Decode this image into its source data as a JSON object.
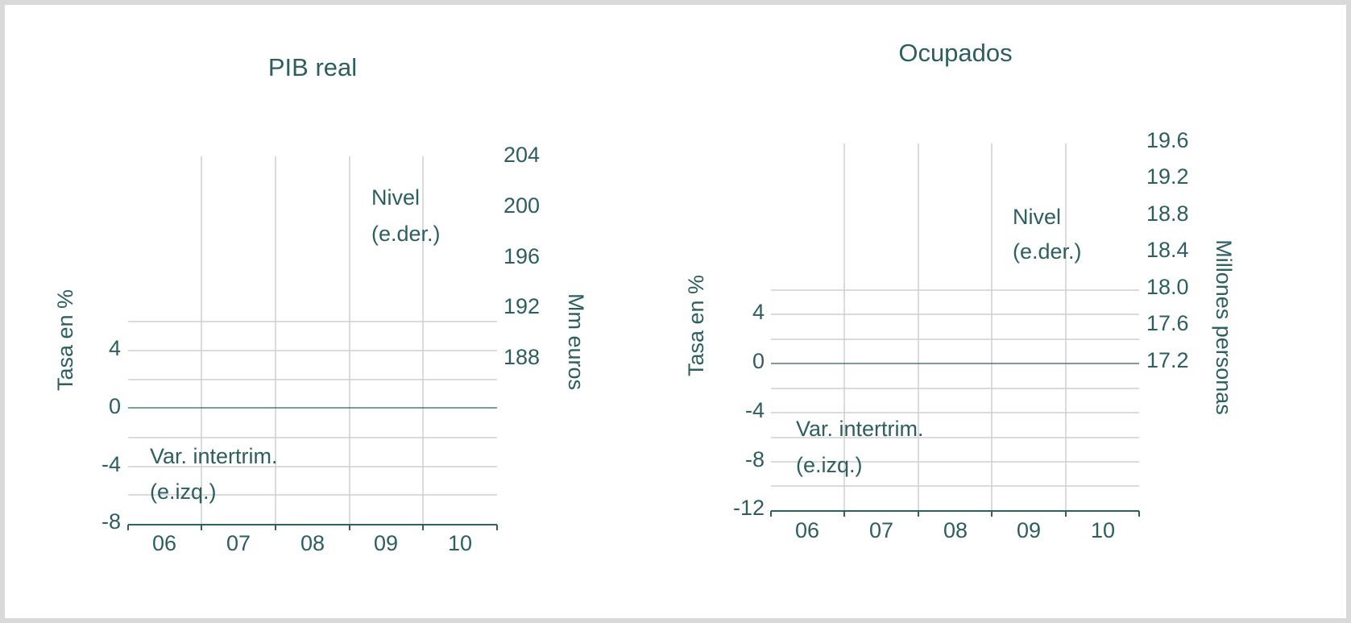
{
  "colors": {
    "text": "#2e5e5e",
    "grid": "#cfcfcf",
    "axis": "#2e6060",
    "background": "#ffffff",
    "border": "#d9d9d9"
  },
  "chart_data": [
    {
      "type": "line",
      "title": "PIB real",
      "categories": [
        "06",
        "07",
        "08",
        "09",
        "10"
      ],
      "left_axis": {
        "label": "Tasa en %",
        "ticks": [
          "4",
          "0",
          "-4",
          "-8"
        ],
        "range": [
          -8,
          6
        ]
      },
      "right_axis": {
        "label": "Mm euros",
        "ticks": [
          "204",
          "200",
          "196",
          "192",
          "188"
        ],
        "range": [
          186,
          204
        ]
      },
      "grid": true,
      "annotations": {
        "level": [
          "Nivel",
          "(e.der.)"
        ],
        "rate": [
          "Var. intertrim.",
          "(e.izq.)"
        ]
      },
      "series": []
    },
    {
      "type": "line",
      "title": "Ocupados",
      "categories": [
        "06",
        "07",
        "08",
        "09",
        "10"
      ],
      "left_axis": {
        "label": "Tasa en %",
        "ticks": [
          "4",
          "0",
          "-4",
          "-8",
          "-12"
        ],
        "range": [
          -12,
          6
        ]
      },
      "right_axis": {
        "label": "Millones personas",
        "ticks": [
          "19.6",
          "19.2",
          "18.8",
          "18.4",
          "18.0",
          "17.6",
          "17.2"
        ],
        "range": [
          17.0,
          19.6
        ]
      },
      "grid": true,
      "annotations": {
        "level": [
          "Nivel",
          "(e.der.)"
        ],
        "rate": [
          "Var. intertrim.",
          "(e.izq.)"
        ]
      },
      "series": []
    }
  ]
}
